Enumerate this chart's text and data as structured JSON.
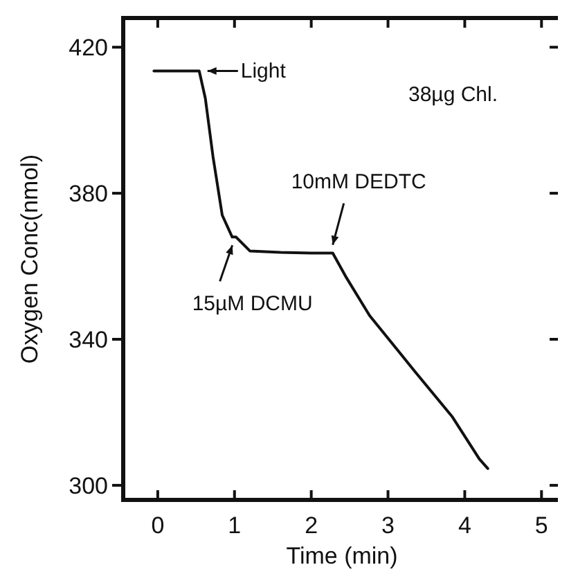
{
  "chart_data": {
    "type": "line",
    "xlabel": "Time (min)",
    "ylabel": "Oxygen Conc(nmol)",
    "xlim": [
      -0.45,
      5.25
    ],
    "xticks": [
      0,
      1,
      2,
      3,
      4,
      5
    ],
    "ylim": [
      296,
      428
    ],
    "yticks": [
      300,
      340,
      380,
      420
    ],
    "x": [
      -0.05,
      0.54,
      0.62,
      0.72,
      0.84,
      0.97,
      1.02,
      1.2,
      1.6,
      2.0,
      2.28,
      2.46,
      2.76,
      3.35,
      3.84,
      4.19,
      4.3
    ],
    "series": [
      {
        "color": "#111111",
        "values": [
          413.5,
          413.5,
          406,
          390,
          374,
          368,
          368,
          364.2,
          363.8,
          363.6,
          363.6,
          356.8,
          346.5,
          331.2,
          318.7,
          307.2,
          304.6
        ]
      }
    ],
    "marker": "none",
    "line_style": "solid",
    "grid": false,
    "annotations": [
      {
        "text": "Light",
        "x": 0.54,
        "y": 413.5
      },
      {
        "text": "15µM DCMU",
        "x": 0.99,
        "y": 368
      },
      {
        "text": "10mM DEDTC",
        "x": 2.28,
        "y": 363.6
      },
      "38µg Chl."
    ]
  }
}
